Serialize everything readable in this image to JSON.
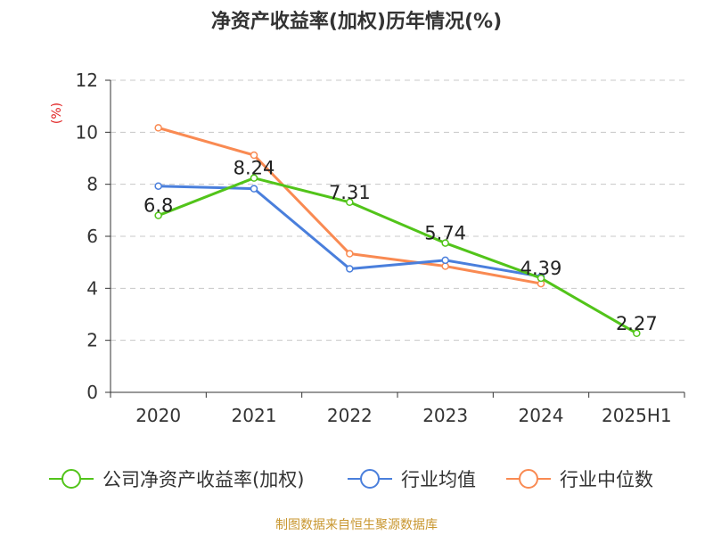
{
  "title": "净资产收益率(加权)历年情况(%)",
  "source": "制图数据来自恒生聚源数据库",
  "chart_data": {
    "type": "line",
    "title": "净资产收益率(加权)历年情况(%)",
    "ylabel": "(%)",
    "xlabel": "",
    "categories": [
      "2020",
      "2021",
      "2022",
      "2023",
      "2024",
      "2025H1"
    ],
    "ylim": [
      0,
      12
    ],
    "yticks": [
      0,
      2,
      4,
      6,
      8,
      10,
      12
    ],
    "grid": true,
    "legend_position": "bottom",
    "series": [
      {
        "name": "公司净资产收益率(加权)",
        "color": "#52c41a",
        "values": [
          6.8,
          8.24,
          7.31,
          5.74,
          4.39,
          2.27
        ],
        "labels": [
          "6.8",
          "8.24",
          "7.31",
          "5.74",
          "4.39",
          "2.27"
        ]
      },
      {
        "name": "行业均值",
        "color": "#4a7fdc",
        "values": [
          7.93,
          7.83,
          4.75,
          5.08,
          4.45,
          null
        ]
      },
      {
        "name": "行业中位数",
        "color": "#f98a52",
        "values": [
          10.17,
          9.12,
          5.33,
          4.85,
          4.18,
          null
        ]
      }
    ]
  }
}
